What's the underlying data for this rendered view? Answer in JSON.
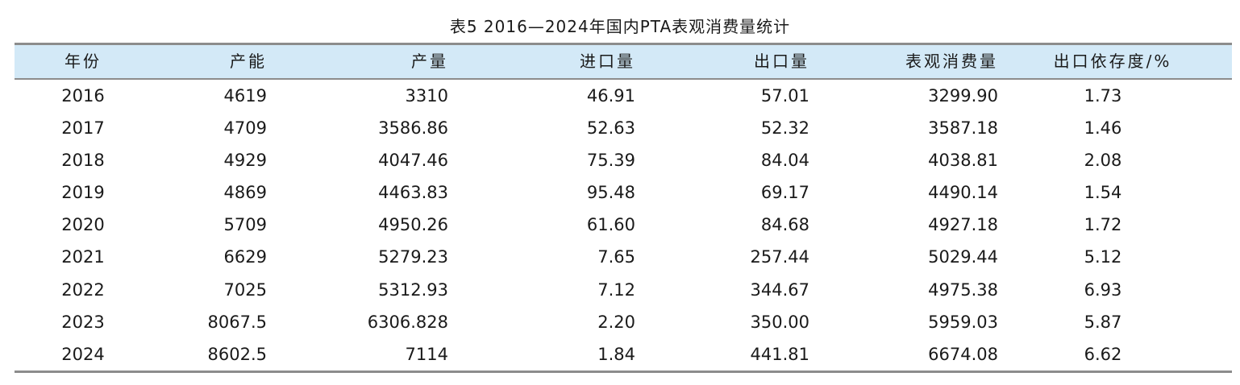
{
  "caption": "表5  2016—2024年国内PTA表观消费量统计",
  "columns": [
    "年份",
    "产能",
    "产量",
    "进口量",
    "出口量",
    "表观消费量",
    "出口依存度/%"
  ],
  "rows": [
    [
      "2016",
      "4619",
      "3310",
      "46.91",
      "57.01",
      "3299.90",
      "1.73"
    ],
    [
      "2017",
      "4709",
      "3586.86",
      "52.63",
      "52.32",
      "3587.18",
      "1.46"
    ],
    [
      "2018",
      "4929",
      "4047.46",
      "75.39",
      "84.04",
      "4038.81",
      "2.08"
    ],
    [
      "2019",
      "4869",
      "4463.83",
      "95.48",
      "69.17",
      "4490.14",
      "1.54"
    ],
    [
      "2020",
      "5709",
      "4950.26",
      "61.60",
      "84.68",
      "4927.18",
      "1.72"
    ],
    [
      "2021",
      "6629",
      "5279.23",
      "7.65",
      "257.44",
      "5029.44",
      "5.12"
    ],
    [
      "2022",
      "7025",
      "5312.93",
      "7.12",
      "344.67",
      "4975.38",
      "6.93"
    ],
    [
      "2023",
      "8067.5",
      "6306.828",
      "2.20",
      "350.00",
      "5959.03",
      "5.87"
    ],
    [
      "2024",
      "8602.5",
      "7114",
      "1.84",
      "441.81",
      "6674.08",
      "6.62"
    ]
  ],
  "colors": {
    "header_background": "#d3e9f7",
    "rule": "#8c8c8c",
    "text": "#1a1a1a"
  }
}
